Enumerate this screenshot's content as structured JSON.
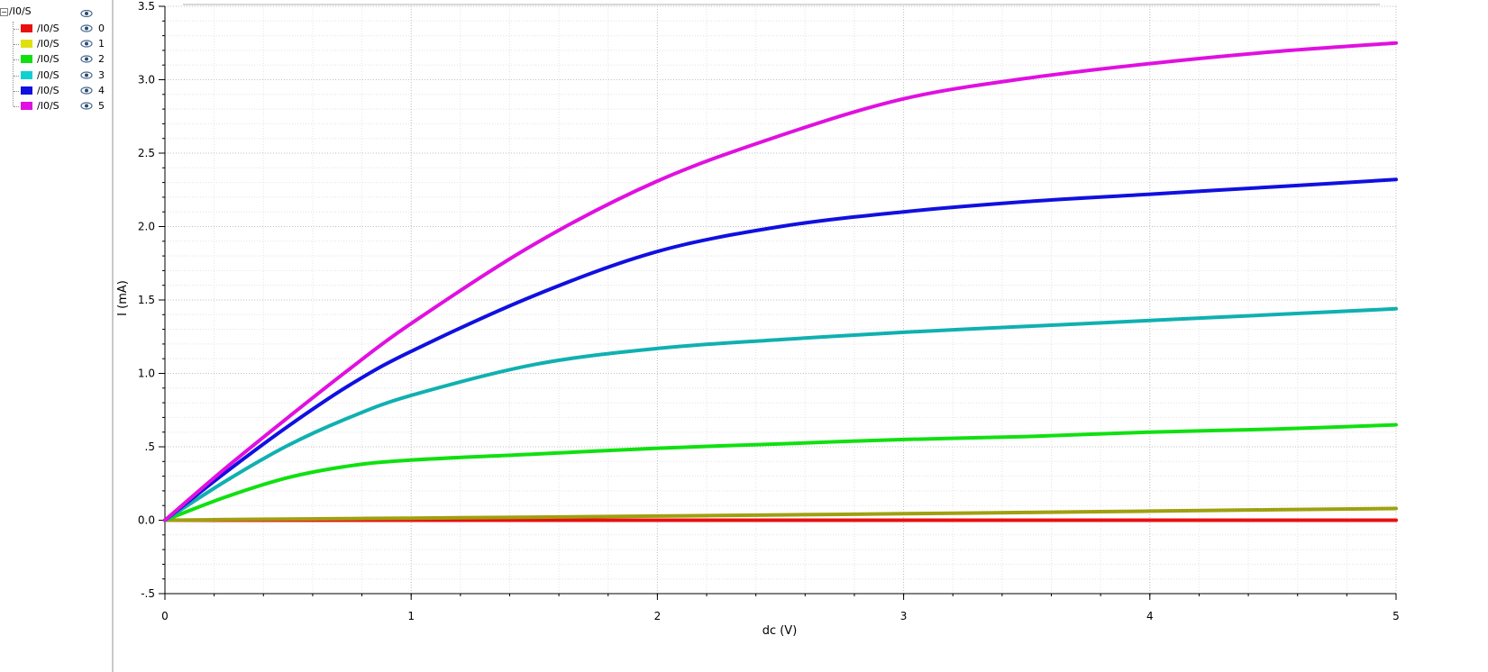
{
  "legend": {
    "group_label": "/I0/S",
    "items": [
      {
        "name": "/I0/S",
        "index": "0",
        "color": "#e81010"
      },
      {
        "name": "/I0/S",
        "index": "1",
        "color": "#e0e010"
      },
      {
        "name": "/I0/S",
        "index": "2",
        "color": "#10e010"
      },
      {
        "name": "/I0/S",
        "index": "3",
        "color": "#10d0d0"
      },
      {
        "name": "/I0/S",
        "index": "4",
        "color": "#1010e0"
      },
      {
        "name": "/I0/S",
        "index": "5",
        "color": "#e010e0"
      }
    ]
  },
  "chart_data": {
    "type": "line",
    "xlabel": "dc (V)",
    "ylabel": "I (mA)",
    "xlim": [
      0,
      5
    ],
    "ylim": [
      -0.5,
      3.5
    ],
    "x_ticks": [
      "0",
      "1",
      "2",
      "3",
      "4",
      "5"
    ],
    "y_ticks": [
      "-.5",
      "0.0",
      ".5",
      "1.0",
      "1.5",
      "2.0",
      "2.5",
      "3.0",
      "3.5"
    ],
    "grid": true,
    "x": [
      0,
      0.25,
      0.5,
      0.75,
      1.0,
      1.5,
      2.0,
      2.5,
      3.0,
      3.5,
      4.0,
      4.5,
      5.0
    ],
    "series": [
      {
        "color": "#e81010",
        "values": [
          0,
          0,
          0,
          0,
          0,
          0,
          0,
          0,
          0,
          0,
          0,
          0,
          0
        ]
      },
      {
        "color": "#a0a010",
        "values": [
          0,
          0.004,
          0.008,
          0.011,
          0.014,
          0.021,
          0.028,
          0.036,
          0.044,
          0.053,
          0.062,
          0.071,
          0.08
        ]
      },
      {
        "color": "#10e010",
        "values": [
          0,
          0.16,
          0.29,
          0.37,
          0.41,
          0.45,
          0.49,
          0.52,
          0.55,
          0.57,
          0.6,
          0.62,
          0.65
        ]
      },
      {
        "color": "#10b0b0",
        "values": [
          0,
          0.27,
          0.51,
          0.7,
          0.85,
          1.06,
          1.17,
          1.23,
          1.28,
          1.32,
          1.36,
          1.4,
          1.44
        ]
      },
      {
        "color": "#1010e0",
        "values": [
          0,
          0.33,
          0.64,
          0.92,
          1.15,
          1.53,
          1.83,
          2.0,
          2.1,
          2.17,
          2.22,
          2.27,
          2.32
        ]
      },
      {
        "color": "#e010e0",
        "values": [
          0,
          0.36,
          0.7,
          1.03,
          1.34,
          1.88,
          2.31,
          2.62,
          2.87,
          3.01,
          3.11,
          3.19,
          3.25
        ]
      }
    ]
  }
}
